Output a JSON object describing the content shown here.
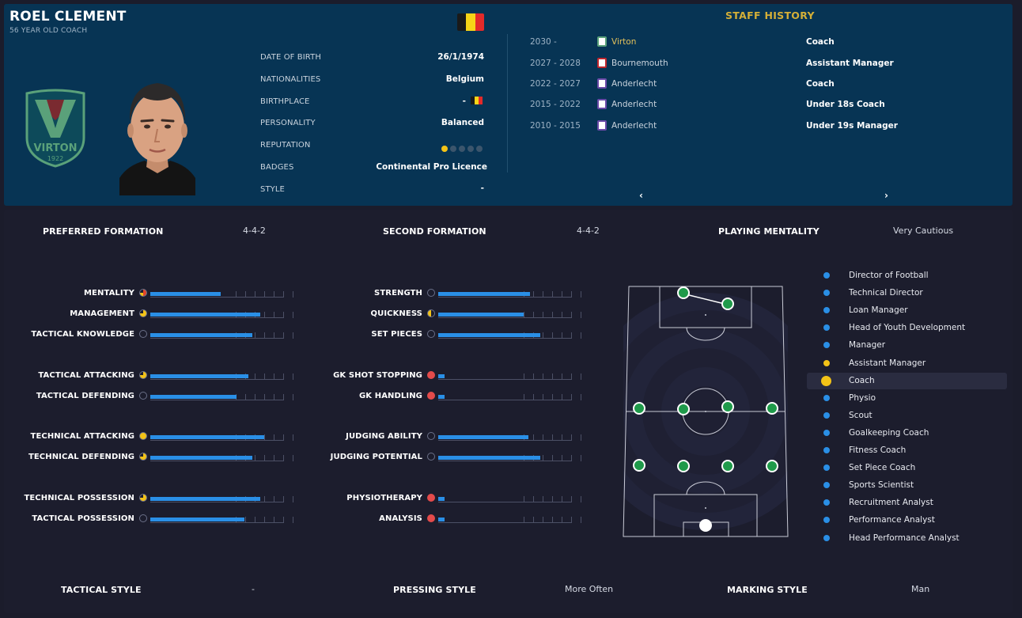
{
  "profile": {
    "name": "ROEL CLEMENT",
    "age_line": "56 YEAR OLD COACH",
    "club_logo_text": "VIRTON",
    "club_logo_year": "1922",
    "fields": [
      {
        "label": "DATE OF BIRTH",
        "value": "26/1/1974"
      },
      {
        "label": "NATIONALITIES",
        "value": "Belgium"
      },
      {
        "label": "BIRTHPLACE",
        "value": "-"
      },
      {
        "label": "PERSONALITY",
        "value": "Balanced"
      },
      {
        "label": "REPUTATION",
        "value": ""
      },
      {
        "label": "BADGES",
        "value": "Continental Pro Licence"
      },
      {
        "label": "STYLE",
        "value": "-"
      }
    ],
    "reputation_stars": 1,
    "reputation_max": 5
  },
  "staff_history": {
    "title": "STAFF HISTORY",
    "rows": [
      {
        "years": "2030 -",
        "club": "Virton",
        "role": "Coach",
        "current": true,
        "badge": "virton"
      },
      {
        "years": "2027 - 2028",
        "club": "Bournemouth",
        "role": "Assistant Manager",
        "current": false,
        "badge": "bournemouth"
      },
      {
        "years": "2022 - 2027",
        "club": "Anderlecht",
        "role": "Coach",
        "current": false,
        "badge": "anderlecht"
      },
      {
        "years": "2015 - 2022",
        "club": "Anderlecht",
        "role": "Under 18s Coach",
        "current": false,
        "badge": "anderlecht"
      },
      {
        "years": "2010 - 2015",
        "club": "Anderlecht",
        "role": "Under 19s Manager",
        "current": false,
        "badge": "anderlecht"
      }
    ],
    "prev_icon": "chevron-left-icon",
    "next_icon": "chevron-right-icon",
    "prev_glyph": "‹",
    "next_glyph": "›"
  },
  "tactics": {
    "preferred_formation_label": "PREFERRED FORMATION",
    "preferred_formation": "4-4-2",
    "second_formation_label": "SECOND FORMATION",
    "second_formation": "4-4-2",
    "playing_mentality_label": "PLAYING MENTALITY",
    "playing_mentality": "Very Cautious",
    "tactical_style_label": "TACTICAL STYLE",
    "tactical_style": "-",
    "pressing_style_label": "PRESSING STYLE",
    "pressing_style": "More Often",
    "marking_style_label": "MARKING STYLE",
    "marking_style": "Man"
  },
  "attributes_left": [
    {
      "label": "MENTALITY",
      "value": 0.53,
      "icon": "mixed"
    },
    {
      "label": "MANAGEMENT",
      "value": 0.83,
      "icon": "gold"
    },
    {
      "label": "TACTICAL KNOWLEDGE",
      "value": 0.77,
      "icon": "empty"
    },
    {
      "label": "TACTICAL ATTACKING",
      "value": 0.74,
      "icon": "gold"
    },
    {
      "label": "TACTICAL DEFENDING",
      "value": 0.65,
      "icon": "empty"
    },
    {
      "label": "TECHNICAL ATTACKING",
      "value": 0.86,
      "icon": "gold-full"
    },
    {
      "label": "TECHNICAL DEFENDING",
      "value": 0.77,
      "icon": "gold"
    },
    {
      "label": "TECHNICAL POSSESSION",
      "value": 0.83,
      "icon": "gold"
    },
    {
      "label": "TACTICAL POSSESSION",
      "value": 0.71,
      "icon": "empty"
    }
  ],
  "attributes_right": [
    {
      "label": "STRENGTH",
      "value": 0.69,
      "icon": "empty"
    },
    {
      "label": "QUICKNESS",
      "value": 0.64,
      "icon": "gold-low"
    },
    {
      "label": "SET PIECES",
      "value": 0.77,
      "icon": "empty"
    },
    {
      "label": "GK SHOT STOPPING",
      "value": 0.05,
      "icon": "red"
    },
    {
      "label": "GK HANDLING",
      "value": 0.05,
      "icon": "red"
    },
    {
      "label": "JUDGING ABILITY",
      "value": 0.68,
      "icon": "empty"
    },
    {
      "label": "JUDGING POTENTIAL",
      "value": 0.77,
      "icon": "empty"
    },
    {
      "label": "PHYSIOTHERAPY",
      "value": 0.05,
      "icon": "red"
    },
    {
      "label": "ANALYSIS",
      "value": 0.05,
      "icon": "red"
    }
  ],
  "roles": [
    {
      "label": "Director of Football",
      "color": "blue",
      "selected": false
    },
    {
      "label": "Technical Director",
      "color": "blue",
      "selected": false
    },
    {
      "label": "Loan Manager",
      "color": "blue",
      "selected": false
    },
    {
      "label": "Head of Youth Development",
      "color": "blue",
      "selected": false
    },
    {
      "label": "Manager",
      "color": "blue",
      "selected": false
    },
    {
      "label": "Assistant Manager",
      "color": "gold",
      "selected": false
    },
    {
      "label": "Coach",
      "color": "gold",
      "selected": true
    },
    {
      "label": "Physio",
      "color": "blue",
      "selected": false
    },
    {
      "label": "Scout",
      "color": "blue",
      "selected": false
    },
    {
      "label": "Goalkeeping Coach",
      "color": "blue",
      "selected": false
    },
    {
      "label": "Fitness Coach",
      "color": "blue",
      "selected": false
    },
    {
      "label": "Set Piece Coach",
      "color": "blue",
      "selected": false
    },
    {
      "label": "Sports Scientist",
      "color": "blue",
      "selected": false
    },
    {
      "label": "Recruitment Analyst",
      "color": "blue",
      "selected": false
    },
    {
      "label": "Performance Analyst",
      "color": "blue",
      "selected": false
    },
    {
      "label": "Head Performance Analyst",
      "color": "blue",
      "selected": false
    }
  ],
  "colors": {
    "accent_blue": "#2a8fe6",
    "accent_gold": "#f3c317",
    "header_bg": "#073454",
    "player_green": "#1f9a4a"
  }
}
